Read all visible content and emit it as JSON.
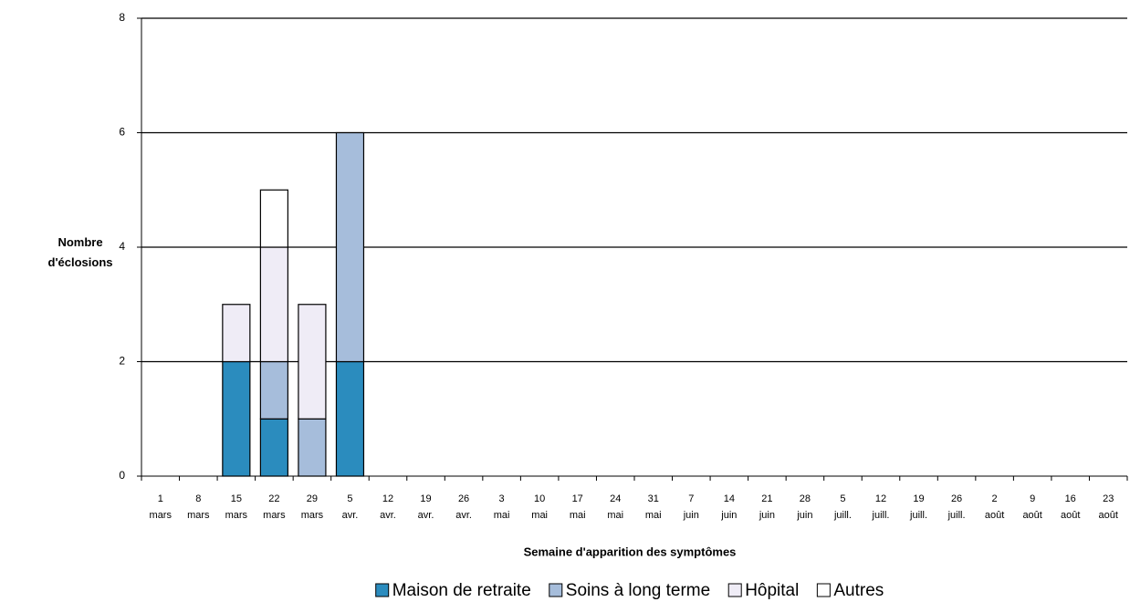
{
  "chart_data": {
    "type": "stacked_bar",
    "y_label": "Nombre d'éclosions",
    "x_label": "Semaine d'apparition des symptômes",
    "categories": [
      "1 mars",
      "8 mars",
      "15 mars",
      "22 mars",
      "29 mars",
      "5 avr.",
      "12 avr.",
      "19 avr.",
      "26 avr.",
      "3 mai",
      "10 mai",
      "17 mai",
      "24 mai",
      "31 mai",
      "7 juin",
      "14 juin",
      "21 juin",
      "28 juin",
      "5 juill.",
      "12 juill.",
      "19 juill.",
      "26 juill.",
      "2 août",
      "9 août",
      "16 août",
      "23 août"
    ],
    "series": [
      {
        "name": "Maison de retraite",
        "color": "#2b8cbe",
        "values": [
          0,
          0,
          2,
          1,
          0,
          2,
          0,
          0,
          0,
          0,
          0,
          0,
          0,
          0,
          0,
          0,
          0,
          0,
          0,
          0,
          0,
          0,
          0,
          0,
          0,
          0
        ]
      },
      {
        "name": "Soins à long terme",
        "color": "#a6bddb",
        "values": [
          0,
          0,
          0,
          1,
          1,
          4,
          0,
          0,
          0,
          0,
          0,
          0,
          0,
          0,
          0,
          0,
          0,
          0,
          0,
          0,
          0,
          0,
          0,
          0,
          0,
          0
        ]
      },
      {
        "name": "Hôpital",
        "color": "#efecf6",
        "values": [
          0,
          0,
          1,
          2,
          2,
          0,
          0,
          0,
          0,
          0,
          0,
          0,
          0,
          0,
          0,
          0,
          0,
          0,
          0,
          0,
          0,
          0,
          0,
          0,
          0,
          0
        ]
      },
      {
        "name": "Autres",
        "color": "#ffffff",
        "values": [
          0,
          0,
          0,
          1,
          0,
          0,
          0,
          0,
          0,
          0,
          0,
          0,
          0,
          0,
          0,
          0,
          0,
          0,
          0,
          0,
          0,
          0,
          0,
          0,
          0,
          0
        ]
      }
    ],
    "ylim": [
      0,
      8
    ],
    "yticks": [
      0,
      2,
      4,
      6,
      8
    ],
    "grid": true
  }
}
